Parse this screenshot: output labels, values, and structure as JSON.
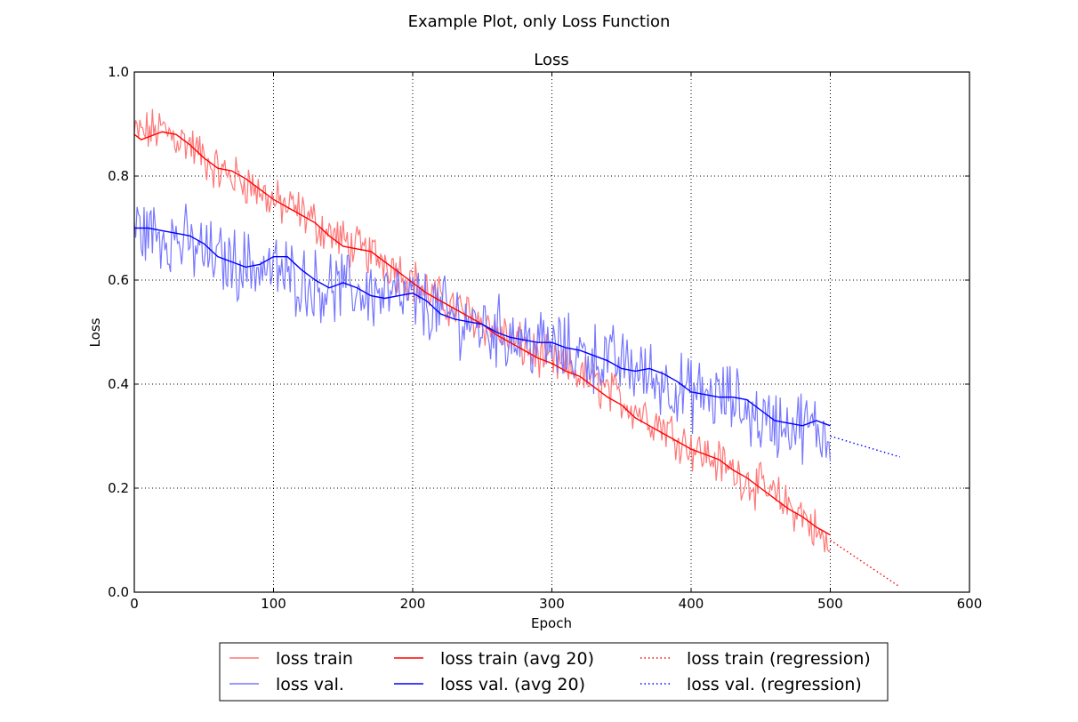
{
  "figure": {
    "suptitle": "Example Plot, only Loss Function"
  },
  "chart_data": {
    "type": "line",
    "title": "Loss",
    "xlabel": "Epoch",
    "ylabel": "Loss",
    "xlim": [
      0,
      600
    ],
    "ylim": [
      0.0,
      1.0
    ],
    "x_ticks": [
      0,
      100,
      200,
      300,
      400,
      500,
      600
    ],
    "x_tick_labels": [
      "0",
      "100",
      "200",
      "300",
      "400",
      "500",
      "600"
    ],
    "y_ticks": [
      0.0,
      0.2,
      0.4,
      0.6,
      0.8,
      1.0
    ],
    "y_tick_labels": [
      "0.0",
      "0.2",
      "0.4",
      "0.6",
      "0.8",
      "1.0"
    ],
    "grid": true,
    "legend_placement": "below plot, centered, 3 columns",
    "series": [
      {
        "name": "loss train",
        "color": "#ff7777",
        "style": "solid-noisy",
        "x_start": 0,
        "x_end": 500,
        "anchors": [
          [
            0,
            0.88
          ],
          [
            20,
            0.89
          ],
          [
            40,
            0.86
          ],
          [
            60,
            0.81
          ],
          [
            80,
            0.79
          ],
          [
            100,
            0.75
          ],
          [
            120,
            0.73
          ],
          [
            140,
            0.69
          ],
          [
            160,
            0.66
          ],
          [
            180,
            0.64
          ],
          [
            200,
            0.6
          ],
          [
            220,
            0.56
          ],
          [
            250,
            0.52
          ],
          [
            280,
            0.47
          ],
          [
            300,
            0.44
          ],
          [
            320,
            0.42
          ],
          [
            350,
            0.37
          ],
          [
            380,
            0.32
          ],
          [
            400,
            0.28
          ],
          [
            420,
            0.25
          ],
          [
            450,
            0.2
          ],
          [
            480,
            0.15
          ],
          [
            500,
            0.08
          ]
        ],
        "noise": 0.035
      },
      {
        "name": "loss val.",
        "color": "#7777ff",
        "style": "solid-noisy",
        "x_start": 0,
        "x_end": 500,
        "anchors": [
          [
            0,
            0.7
          ],
          [
            30,
            0.68
          ],
          [
            60,
            0.64
          ],
          [
            100,
            0.62
          ],
          [
            130,
            0.59
          ],
          [
            160,
            0.58
          ],
          [
            200,
            0.56
          ],
          [
            250,
            0.51
          ],
          [
            300,
            0.47
          ],
          [
            350,
            0.44
          ],
          [
            400,
            0.38
          ],
          [
            430,
            0.37
          ],
          [
            450,
            0.33
          ],
          [
            480,
            0.32
          ],
          [
            500,
            0.3
          ]
        ],
        "noise": 0.055
      },
      {
        "name": "loss train (avg 20)",
        "color": "#ff0000",
        "style": "solid",
        "points": [
          [
            0,
            0.88
          ],
          [
            5,
            0.87
          ],
          [
            10,
            0.875
          ],
          [
            20,
            0.885
          ],
          [
            30,
            0.88
          ],
          [
            40,
            0.86
          ],
          [
            50,
            0.835
          ],
          [
            60,
            0.815
          ],
          [
            70,
            0.81
          ],
          [
            80,
            0.795
          ],
          [
            90,
            0.775
          ],
          [
            100,
            0.755
          ],
          [
            110,
            0.74
          ],
          [
            120,
            0.725
          ],
          [
            130,
            0.71
          ],
          [
            140,
            0.685
          ],
          [
            150,
            0.665
          ],
          [
            160,
            0.66
          ],
          [
            170,
            0.655
          ],
          [
            180,
            0.635
          ],
          [
            190,
            0.615
          ],
          [
            200,
            0.595
          ],
          [
            210,
            0.575
          ],
          [
            220,
            0.56
          ],
          [
            230,
            0.545
          ],
          [
            240,
            0.53
          ],
          [
            250,
            0.515
          ],
          [
            260,
            0.495
          ],
          [
            270,
            0.48
          ],
          [
            280,
            0.465
          ],
          [
            290,
            0.45
          ],
          [
            300,
            0.44
          ],
          [
            310,
            0.425
          ],
          [
            320,
            0.415
          ],
          [
            330,
            0.395
          ],
          [
            340,
            0.375
          ],
          [
            350,
            0.36
          ],
          [
            360,
            0.335
          ],
          [
            370,
            0.32
          ],
          [
            380,
            0.305
          ],
          [
            390,
            0.29
          ],
          [
            400,
            0.275
          ],
          [
            410,
            0.265
          ],
          [
            420,
            0.255
          ],
          [
            430,
            0.235
          ],
          [
            440,
            0.22
          ],
          [
            450,
            0.2
          ],
          [
            460,
            0.18
          ],
          [
            470,
            0.16
          ],
          [
            480,
            0.145
          ],
          [
            490,
            0.125
          ],
          [
            500,
            0.11
          ]
        ]
      },
      {
        "name": "loss val. (avg 20)",
        "color": "#0000ff",
        "style": "solid",
        "points": [
          [
            0,
            0.7
          ],
          [
            10,
            0.7
          ],
          [
            20,
            0.695
          ],
          [
            30,
            0.69
          ],
          [
            40,
            0.685
          ],
          [
            50,
            0.67
          ],
          [
            60,
            0.645
          ],
          [
            70,
            0.635
          ],
          [
            80,
            0.625
          ],
          [
            90,
            0.63
          ],
          [
            100,
            0.645
          ],
          [
            110,
            0.645
          ],
          [
            120,
            0.62
          ],
          [
            130,
            0.6
          ],
          [
            140,
            0.585
          ],
          [
            150,
            0.595
          ],
          [
            160,
            0.585
          ],
          [
            170,
            0.57
          ],
          [
            180,
            0.565
          ],
          [
            190,
            0.57
          ],
          [
            200,
            0.575
          ],
          [
            210,
            0.56
          ],
          [
            220,
            0.535
          ],
          [
            230,
            0.525
          ],
          [
            240,
            0.52
          ],
          [
            250,
            0.515
          ],
          [
            260,
            0.5
          ],
          [
            270,
            0.49
          ],
          [
            280,
            0.485
          ],
          [
            290,
            0.48
          ],
          [
            300,
            0.48
          ],
          [
            310,
            0.47
          ],
          [
            320,
            0.465
          ],
          [
            330,
            0.455
          ],
          [
            340,
            0.445
          ],
          [
            350,
            0.43
          ],
          [
            360,
            0.425
          ],
          [
            370,
            0.43
          ],
          [
            380,
            0.42
          ],
          [
            390,
            0.405
          ],
          [
            400,
            0.385
          ],
          [
            410,
            0.38
          ],
          [
            420,
            0.375
          ],
          [
            430,
            0.375
          ],
          [
            440,
            0.37
          ],
          [
            450,
            0.35
          ],
          [
            460,
            0.33
          ],
          [
            470,
            0.325
          ],
          [
            480,
            0.32
          ],
          [
            490,
            0.33
          ],
          [
            500,
            0.32
          ]
        ]
      },
      {
        "name": "loss train (regression)",
        "color": "#ff0000",
        "style": "dotted",
        "points": [
          [
            500,
            0.1
          ],
          [
            550,
            0.01
          ]
        ]
      },
      {
        "name": "loss val. (regression)",
        "color": "#0000ff",
        "style": "dotted",
        "points": [
          [
            500,
            0.3
          ],
          [
            550,
            0.26
          ]
        ]
      }
    ]
  }
}
